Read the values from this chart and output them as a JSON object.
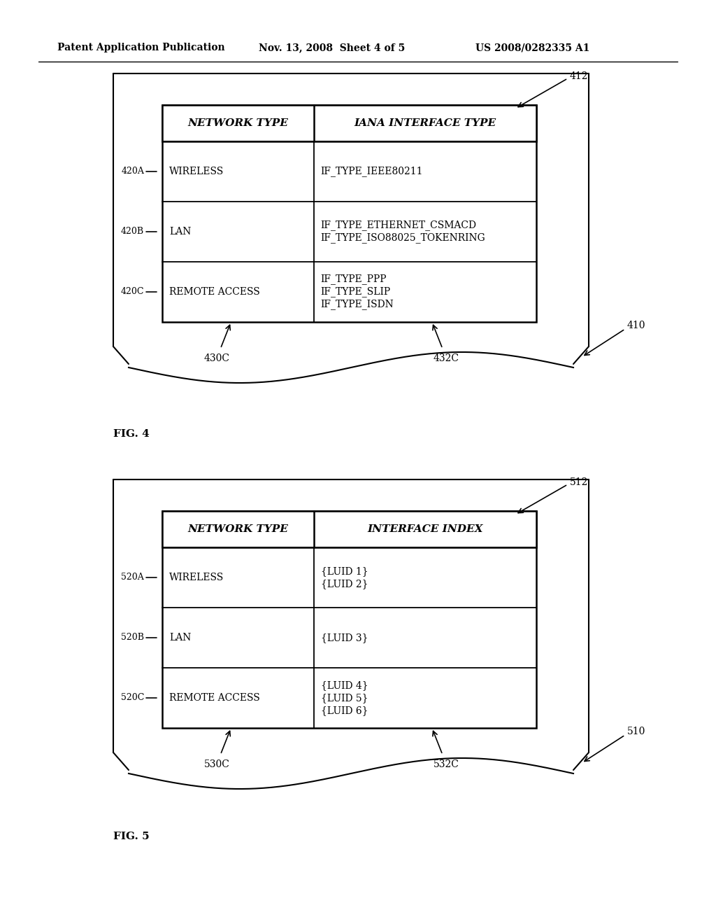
{
  "bg_color": "#f5f5f5",
  "header_line1": "Patent Application Publication",
  "header_line2": "Nov. 13, 2008  Sheet 4 of 5",
  "header_line3": "US 2008/0282335 A1",
  "fig4_label": "FIG. 4",
  "fig5_label": "FIG. 5",
  "fig4": {
    "outer_label": "410",
    "inner_label": "412",
    "col_label1": "430C",
    "col_label2": "432C",
    "col1_header": "NETWORK TYPE",
    "col2_header": "IANA INTERFACE TYPE",
    "rows": [
      {
        "label": "420A",
        "col1": "WIRELESS",
        "col2_lines": [
          "IF_TYPE_IEEE80211"
        ]
      },
      {
        "label": "420B",
        "col1": "LAN",
        "col2_lines": [
          "IF_TYPE_ETHERNET_CSMACD",
          "IF_TYPE_ISO88025_TOKENRING"
        ]
      },
      {
        "label": "420C",
        "col1": "REMOTE ACCESS",
        "col2_lines": [
          "IF_TYPE_PPP",
          "IF_TYPE_SLIP",
          "IF_TYPE_ISDN"
        ]
      }
    ]
  },
  "fig5": {
    "outer_label": "510",
    "inner_label": "512",
    "col_label1": "530C",
    "col_label2": "532C",
    "col1_header": "NETWORK TYPE",
    "col2_header": "INTERFACE INDEX",
    "rows": [
      {
        "label": "520A",
        "col1": "WIRELESS",
        "col2_lines": [
          "{LUID 1}",
          "{LUID 2}"
        ]
      },
      {
        "label": "520B",
        "col1": "LAN",
        "col2_lines": [
          "{LUID 3}"
        ]
      },
      {
        "label": "520C",
        "col1": "REMOTE ACCESS",
        "col2_lines": [
          "{LUID 4}",
          "{LUID 5}",
          "{LUID 6}"
        ]
      }
    ]
  }
}
